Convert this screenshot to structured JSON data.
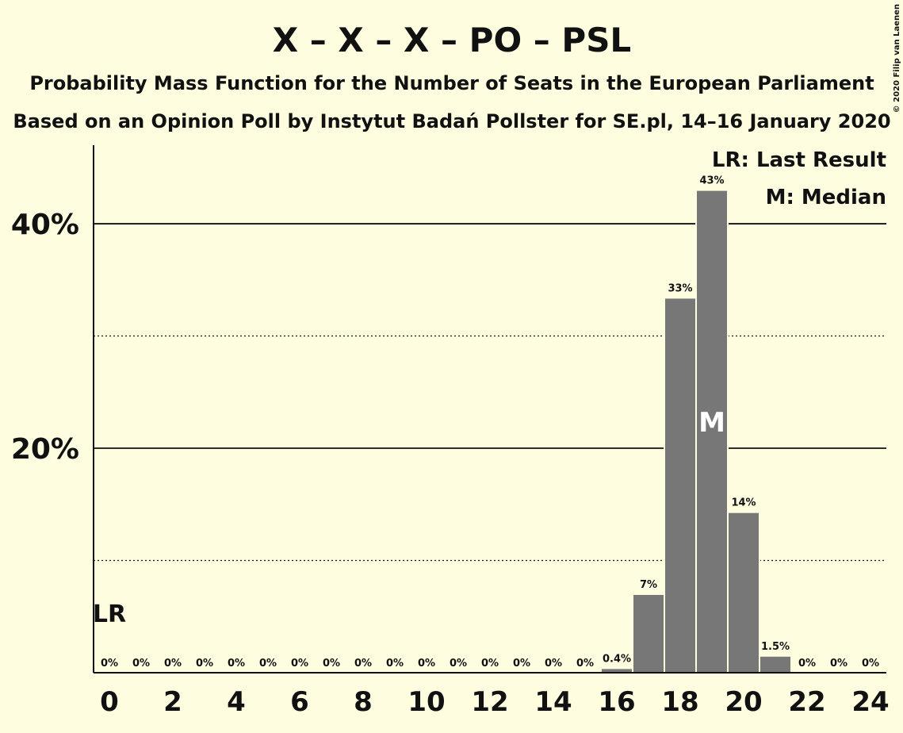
{
  "chart_data": {
    "type": "bar",
    "title": "X – X – X – PO – PSL",
    "subtitle": "Probability Mass Function for the Number of Seats in the European Parliament",
    "subtitle2": "Based on an Opinion Poll by Instytut Badań Pollster for SE.pl, 14–16 January 2020",
    "copyright": "© 2020 Filip van Laenen",
    "categories": [
      0,
      null,
      2,
      null,
      4,
      null,
      6,
      null,
      8,
      null,
      10,
      null,
      12,
      null,
      14,
      null,
      16,
      null,
      18,
      null,
      20,
      null,
      22,
      null,
      24
    ],
    "values": [
      0,
      0,
      0,
      0,
      0,
      0,
      0,
      0,
      0,
      0,
      0,
      0,
      0,
      0,
      0,
      0,
      0.4,
      7.0,
      33.4,
      43.0,
      14.3,
      1.5,
      0,
      0,
      0
    ],
    "value_labels": [
      "0%",
      "0%",
      "0%",
      "0%",
      "0%",
      "0%",
      "0%",
      "0%",
      "0%",
      "0%",
      "0%",
      "0%",
      "0%",
      "0%",
      "0%",
      "0%",
      "0.4%",
      "7%",
      "33%",
      "43%",
      "14%",
      "1.5%",
      "0%",
      "0%",
      "0%"
    ],
    "color": "#777777",
    "ylim": [
      0,
      47
    ],
    "yticks": [
      {
        "value": 20,
        "label": "20%"
      },
      {
        "value": 40,
        "label": "40%"
      }
    ],
    "minor_yticks": [
      10,
      30
    ],
    "grid": true,
    "annotations": [
      {
        "category_index": 0,
        "text": "LR"
      },
      {
        "category_index": 19,
        "text": "M"
      }
    ],
    "legend": [
      "LR: Last Result",
      "M: Median"
    ],
    "legend_position": "top-right"
  }
}
